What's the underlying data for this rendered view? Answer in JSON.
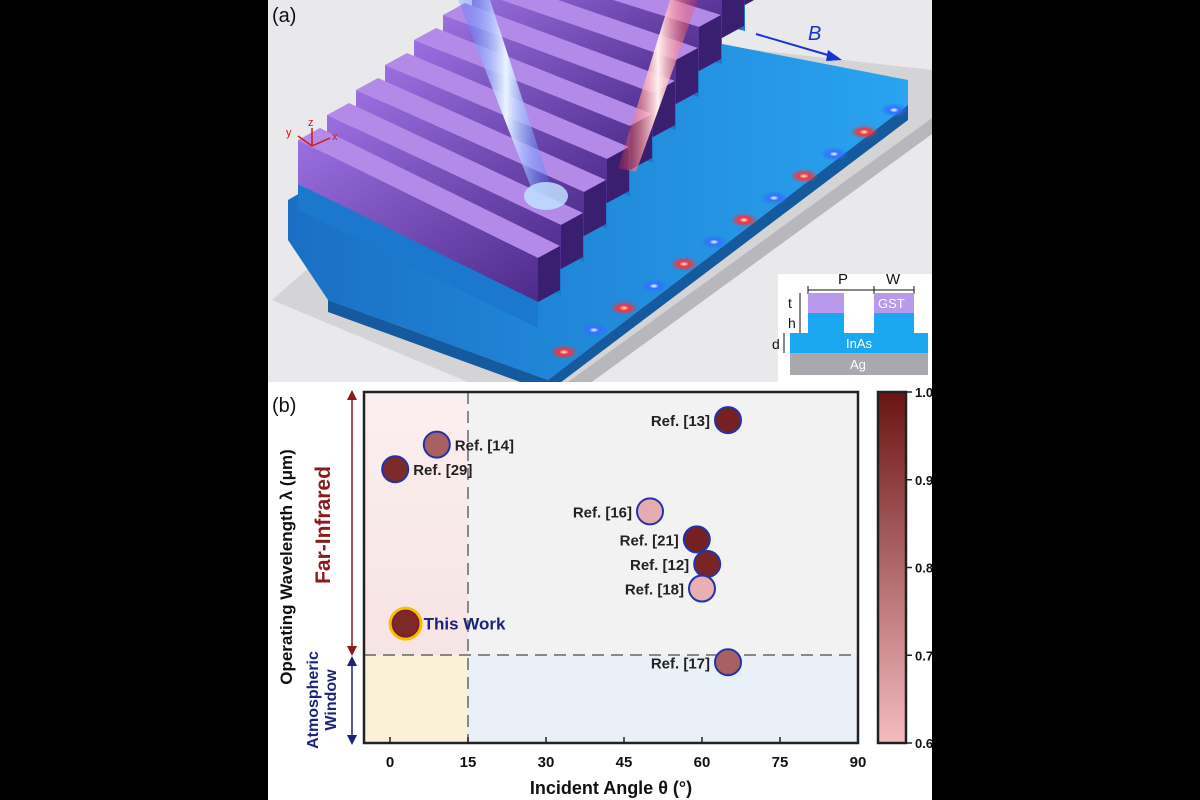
{
  "panel_a": {
    "label": "(a)",
    "field_label": "B",
    "axes": {
      "x": "x",
      "y": "y",
      "z": "z"
    },
    "inset": {
      "period_label": "P",
      "width_label": "W",
      "thickness_label": "t",
      "height_label": "h",
      "depth_label": "d",
      "top_material": "GST",
      "mid_material": "InAs",
      "substrate_material": "Ag"
    },
    "colors": {
      "grating": "#7a4fc0",
      "inas": "#1e8fe0",
      "substrate": "#d9d9d9",
      "beam_blue": "#2c6cff",
      "beam_red": "#ff2a2a"
    }
  },
  "panel_b": {
    "label": "(b)",
    "left_annotations": {
      "upper": "Far-Infrared",
      "lower_line1": "Atmospheric",
      "lower_line2": "Window"
    },
    "colors": {
      "far_ir_text": "#8b1a1a",
      "window_text": "#1b237a",
      "point_edge": "#2233aa",
      "this_work_ring": "#f2c300"
    }
  },
  "chart_data": {
    "type": "scatter",
    "xlabel": "Incident Angle θ (°)",
    "ylabel": "Operating Wavelength λ (μm)",
    "xlim": [
      -5,
      90
    ],
    "xticks": [
      0,
      15,
      30,
      45,
      60,
      75,
      90
    ],
    "x_divider": 15,
    "y_divider_label": "Atmospheric Window / Far-Infrared boundary",
    "colorbar": {
      "min": 0.6,
      "max": 1.0,
      "ticks": [
        0.6,
        0.7,
        0.8,
        0.9,
        1.0
      ],
      "tick_labels": [
        "0.6",
        "0.7",
        "0.8",
        "0.9",
        "1.0"
      ],
      "color_low": "#f4bcc0",
      "color_high": "#6b1414"
    },
    "points": [
      {
        "label": "Ref. [13]",
        "x": 65,
        "y": 9.2,
        "value": 0.97,
        "label_side": "left"
      },
      {
        "label": "Ref. [14]",
        "x": 9,
        "y": 8.5,
        "value": 0.82,
        "label_side": "right"
      },
      {
        "label": "Ref. [29]",
        "x": 1,
        "y": 7.8,
        "value": 0.95,
        "label_side": "right"
      },
      {
        "label": "Ref. [16]",
        "x": 50,
        "y": 6.6,
        "value": 0.64,
        "label_side": "left"
      },
      {
        "label": "Ref. [21]",
        "x": 59,
        "y": 5.8,
        "value": 0.97,
        "label_side": "left"
      },
      {
        "label": "Ref. [12]",
        "x": 61,
        "y": 5.1,
        "value": 0.96,
        "label_side": "left"
      },
      {
        "label": "Ref. [18]",
        "x": 60,
        "y": 4.4,
        "value": 0.63,
        "label_side": "left"
      },
      {
        "label": "This Work",
        "x": 3,
        "y": 3.4,
        "value": 0.95,
        "label_side": "right",
        "highlight": true
      },
      {
        "label": "Ref. [17]",
        "x": 65,
        "y": 2.3,
        "value": 0.82,
        "label_side": "left"
      }
    ]
  }
}
